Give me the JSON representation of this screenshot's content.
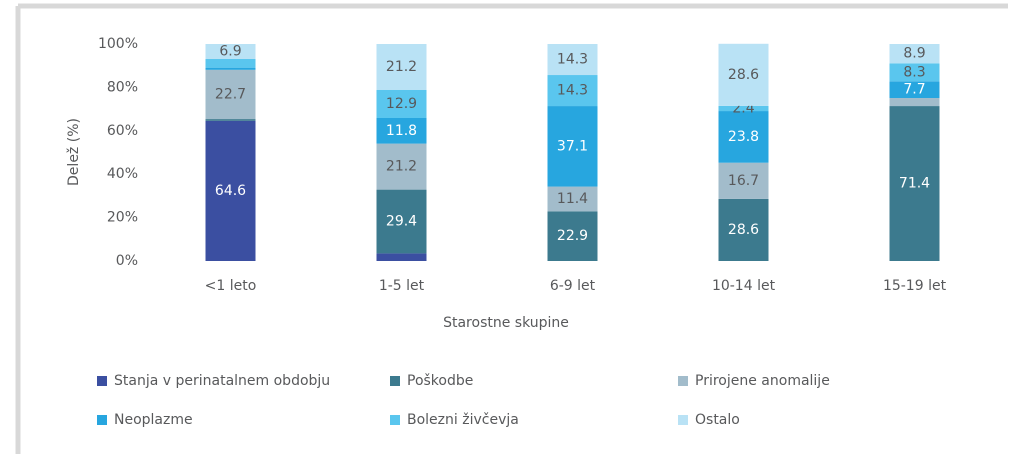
{
  "chart_data": {
    "type": "stacked_bar",
    "y_label": "Delež (%)",
    "x_label": "Starostne skupine",
    "categories": [
      "<1 leto",
      "1-5 let",
      "6-9 let",
      "10-14 let",
      "15-19 let"
    ],
    "series": [
      {
        "name": "Stanja v perinatalnem obdobju",
        "color": "#3b4fa1",
        "label_color": "#ffffff",
        "values": [
          64.6,
          3.5,
          0,
          0,
          0
        ],
        "value_labels": [
          "64.6",
          null,
          null,
          null,
          null
        ]
      },
      {
        "name": "Poškodbe",
        "color": "#3c7a8e",
        "label_color": "#ffffff",
        "values": [
          0.8,
          29.4,
          22.9,
          28.6,
          71.4
        ],
        "value_labels": [
          null,
          "29.4",
          "22.9",
          "28.6",
          "71.4"
        ]
      },
      {
        "name": "Prirojene anomalije",
        "color": "#a2bccb",
        "label_color": "#58595b",
        "values": [
          22.7,
          21.2,
          11.4,
          16.7,
          3.7
        ],
        "value_labels": [
          "22.7",
          "21.2",
          "11.4",
          "16.7",
          null
        ]
      },
      {
        "name": "Neoplazme",
        "color": "#27a6df",
        "label_color": "#ffffff",
        "values": [
          1.0,
          11.8,
          37.1,
          23.8,
          7.7
        ],
        "value_labels": [
          null,
          "11.8",
          "37.1",
          "23.8",
          "7.7"
        ]
      },
      {
        "name": "Bolezni živčevja",
        "color": "#5ac6ee",
        "label_color": "#58595b",
        "values": [
          4.0,
          12.9,
          14.3,
          2.4,
          8.3
        ],
        "value_labels": [
          null,
          "12.9",
          "14.3",
          "2.4",
          "8.3"
        ]
      },
      {
        "name": "Ostalo",
        "color": "#b9e2f5",
        "label_color": "#58595b",
        "values": [
          6.9,
          21.2,
          14.3,
          28.6,
          8.9
        ],
        "value_labels": [
          "6.9",
          "21.2",
          "14.3",
          "28.6",
          "8.9"
        ]
      }
    ],
    "ylim": [
      0,
      100
    ],
    "yticks": [
      {
        "value": 0,
        "label": "0%"
      },
      {
        "value": 20,
        "label": "20%"
      },
      {
        "value": 40,
        "label": "40%"
      },
      {
        "value": 60,
        "label": "60%"
      },
      {
        "value": 80,
        "label": "80%"
      },
      {
        "value": 100,
        "label": "100%"
      }
    ],
    "legend": "bottom"
  }
}
